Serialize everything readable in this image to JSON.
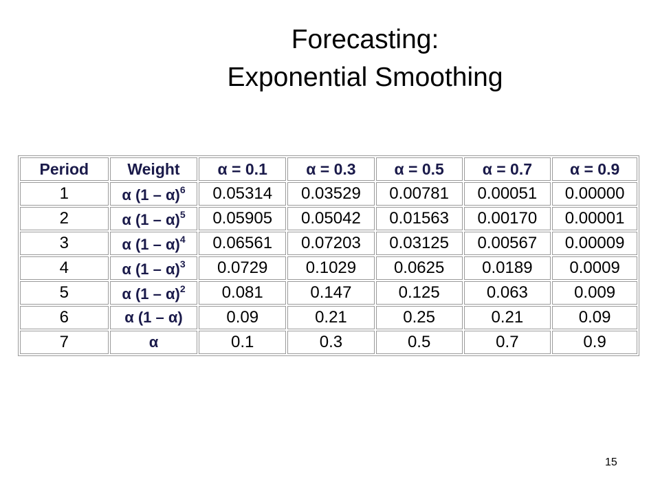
{
  "title": {
    "line1": "Forecasting:",
    "line2": "Exponential Smoothing"
  },
  "table": {
    "header": [
      "Period",
      "Weight",
      "α = 0.1",
      "α = 0.3",
      "α = 0.5",
      "α = 0.7",
      "α = 0.9"
    ],
    "rows": [
      [
        "1",
        {
          "base": "α (1 – α)",
          "sup": "6"
        },
        "0.05314",
        "0.03529",
        "0.00781",
        "0.00051",
        "0.00000"
      ],
      [
        "2",
        {
          "base": "α (1 – α)",
          "sup": "5"
        },
        "0.05905",
        "0.05042",
        "0.01563",
        "0.00170",
        "0.00001"
      ],
      [
        "3",
        {
          "base": "α (1 – α)",
          "sup": "4"
        },
        "0.06561",
        "0.07203",
        "0.03125",
        "0.00567",
        "0.00009"
      ],
      [
        "4",
        {
          "base": "α (1 – α)",
          "sup": "3"
        },
        "0.0729",
        "0.1029",
        "0.0625",
        "0.0189",
        "0.0009"
      ],
      [
        "5",
        {
          "base": "α (1 – α)",
          "sup": "2"
        },
        "0.081",
        "0.147",
        "0.125",
        "0.063",
        "0.009"
      ],
      [
        "6",
        {
          "base": "α (1 – α)"
        },
        "0.09",
        "0.21",
        "0.25",
        "0.21",
        "0.09"
      ],
      [
        "7",
        {
          "base": "α"
        },
        "0.1",
        "0.3",
        "0.5",
        "0.7",
        "0.9"
      ]
    ]
  },
  "page_number": "15"
}
